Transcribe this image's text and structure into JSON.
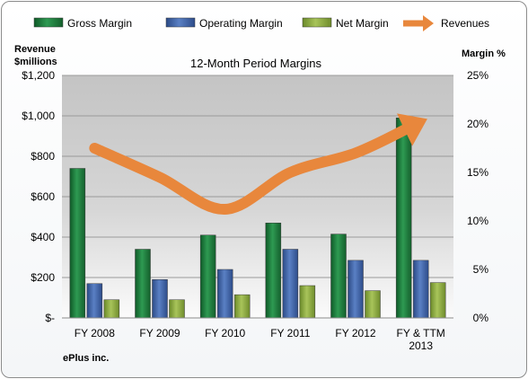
{
  "chart_data": {
    "type": "bar",
    "title": "12-Month Period Margins",
    "categories": [
      "FY 2008",
      "FY 2009",
      "FY 2010",
      "FY 2011",
      "FY 2012",
      "FY & TTM 2013"
    ],
    "series": [
      {
        "name": "Gross Margin",
        "axis": "left",
        "values": [
          740,
          340,
          410,
          470,
          415,
          990
        ]
      },
      {
        "name": "Operating Margin",
        "axis": "left",
        "values": [
          170,
          190,
          240,
          340,
          285,
          285
        ]
      },
      {
        "name": "Net Margin",
        "axis": "left",
        "values": [
          90,
          90,
          115,
          160,
          135,
          175
        ]
      },
      {
        "name": "Revenues",
        "axis": "right",
        "type": "line",
        "values": [
          17.5,
          14.5,
          11.2,
          15.0,
          17.0,
          20.2
        ]
      }
    ],
    "ylabel_left": "Revenue $millions",
    "ylabel_right": "Margin %",
    "ylim_left": [
      0,
      1200
    ],
    "ylim_right": [
      0,
      25
    ],
    "yticks_left": [
      "$-",
      "$200",
      "$400",
      "$600",
      "$800",
      "$1,000",
      "$1,200"
    ],
    "yticks_right": [
      "0%",
      "5%",
      "10%",
      "15%",
      "20%",
      "25%"
    ],
    "legend": "top",
    "grid": true,
    "footer": "ePlus inc.",
    "colors": {
      "gross": "#1e7a3c",
      "operating": "#3f63a8",
      "net": "#8aa53c",
      "revenues": "#e8873c"
    }
  }
}
